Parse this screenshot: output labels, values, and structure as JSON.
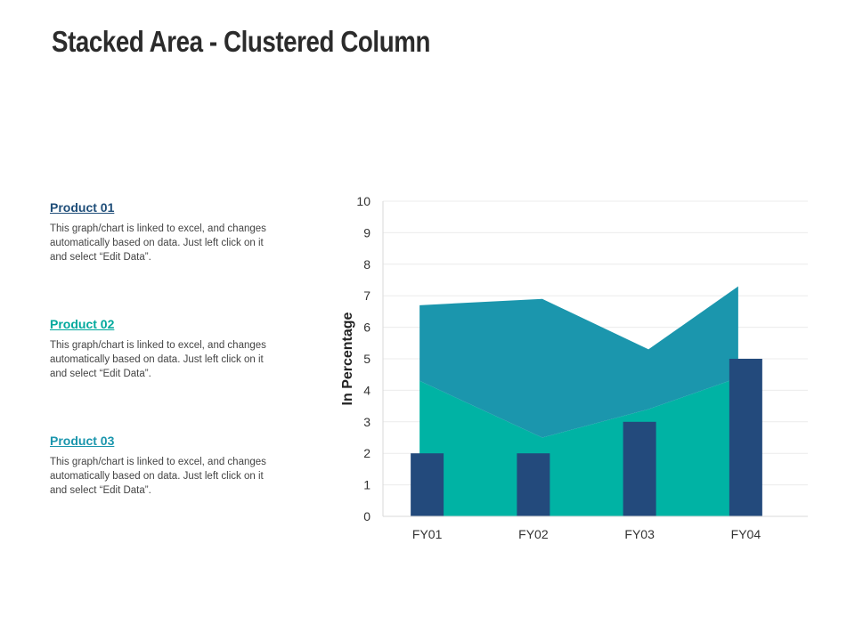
{
  "title": "Stacked Area - Clustered Column",
  "products": [
    {
      "heading": "Product 01",
      "color": "#1f4e79",
      "description": "This graph/chart is linked to excel, and changes automatically based on data. Just left click on it and select “Edit Data”."
    },
    {
      "heading": "Product 02",
      "color": "#00a99d",
      "description": "This graph/chart is linked to excel, and changes automatically based on data. Just left click on it and select “Edit Data”."
    },
    {
      "heading": "Product 03",
      "color": "#1b96ad",
      "description": "This graph/chart is linked to excel, and changes automatically based on data. Just left click on it and select “Edit Data”."
    }
  ],
  "chart_data": {
    "type": "bar",
    "title": "",
    "xlabel": "",
    "ylabel": "In Percentage",
    "ylim": [
      0,
      10
    ],
    "yticks": [
      0,
      1,
      2,
      3,
      4,
      5,
      6,
      7,
      8,
      9,
      10
    ],
    "grid": true,
    "categories": [
      "FY01",
      "FY02",
      "FY03",
      "FY04"
    ],
    "area_series": [
      {
        "values": [
          4.3,
          2.5,
          3.4,
          4.4
        ],
        "color": "#00b3a4"
      },
      {
        "values": [
          2.4,
          4.4,
          1.9,
          2.9
        ],
        "color": "#1b96ad"
      }
    ],
    "column_series": [
      {
        "values": [
          2,
          2,
          3,
          5
        ],
        "color": "#234a7c"
      }
    ],
    "colors": {
      "grid": "#ececec",
      "axis": "#d9d9d9",
      "tick_text": "#333333"
    }
  }
}
